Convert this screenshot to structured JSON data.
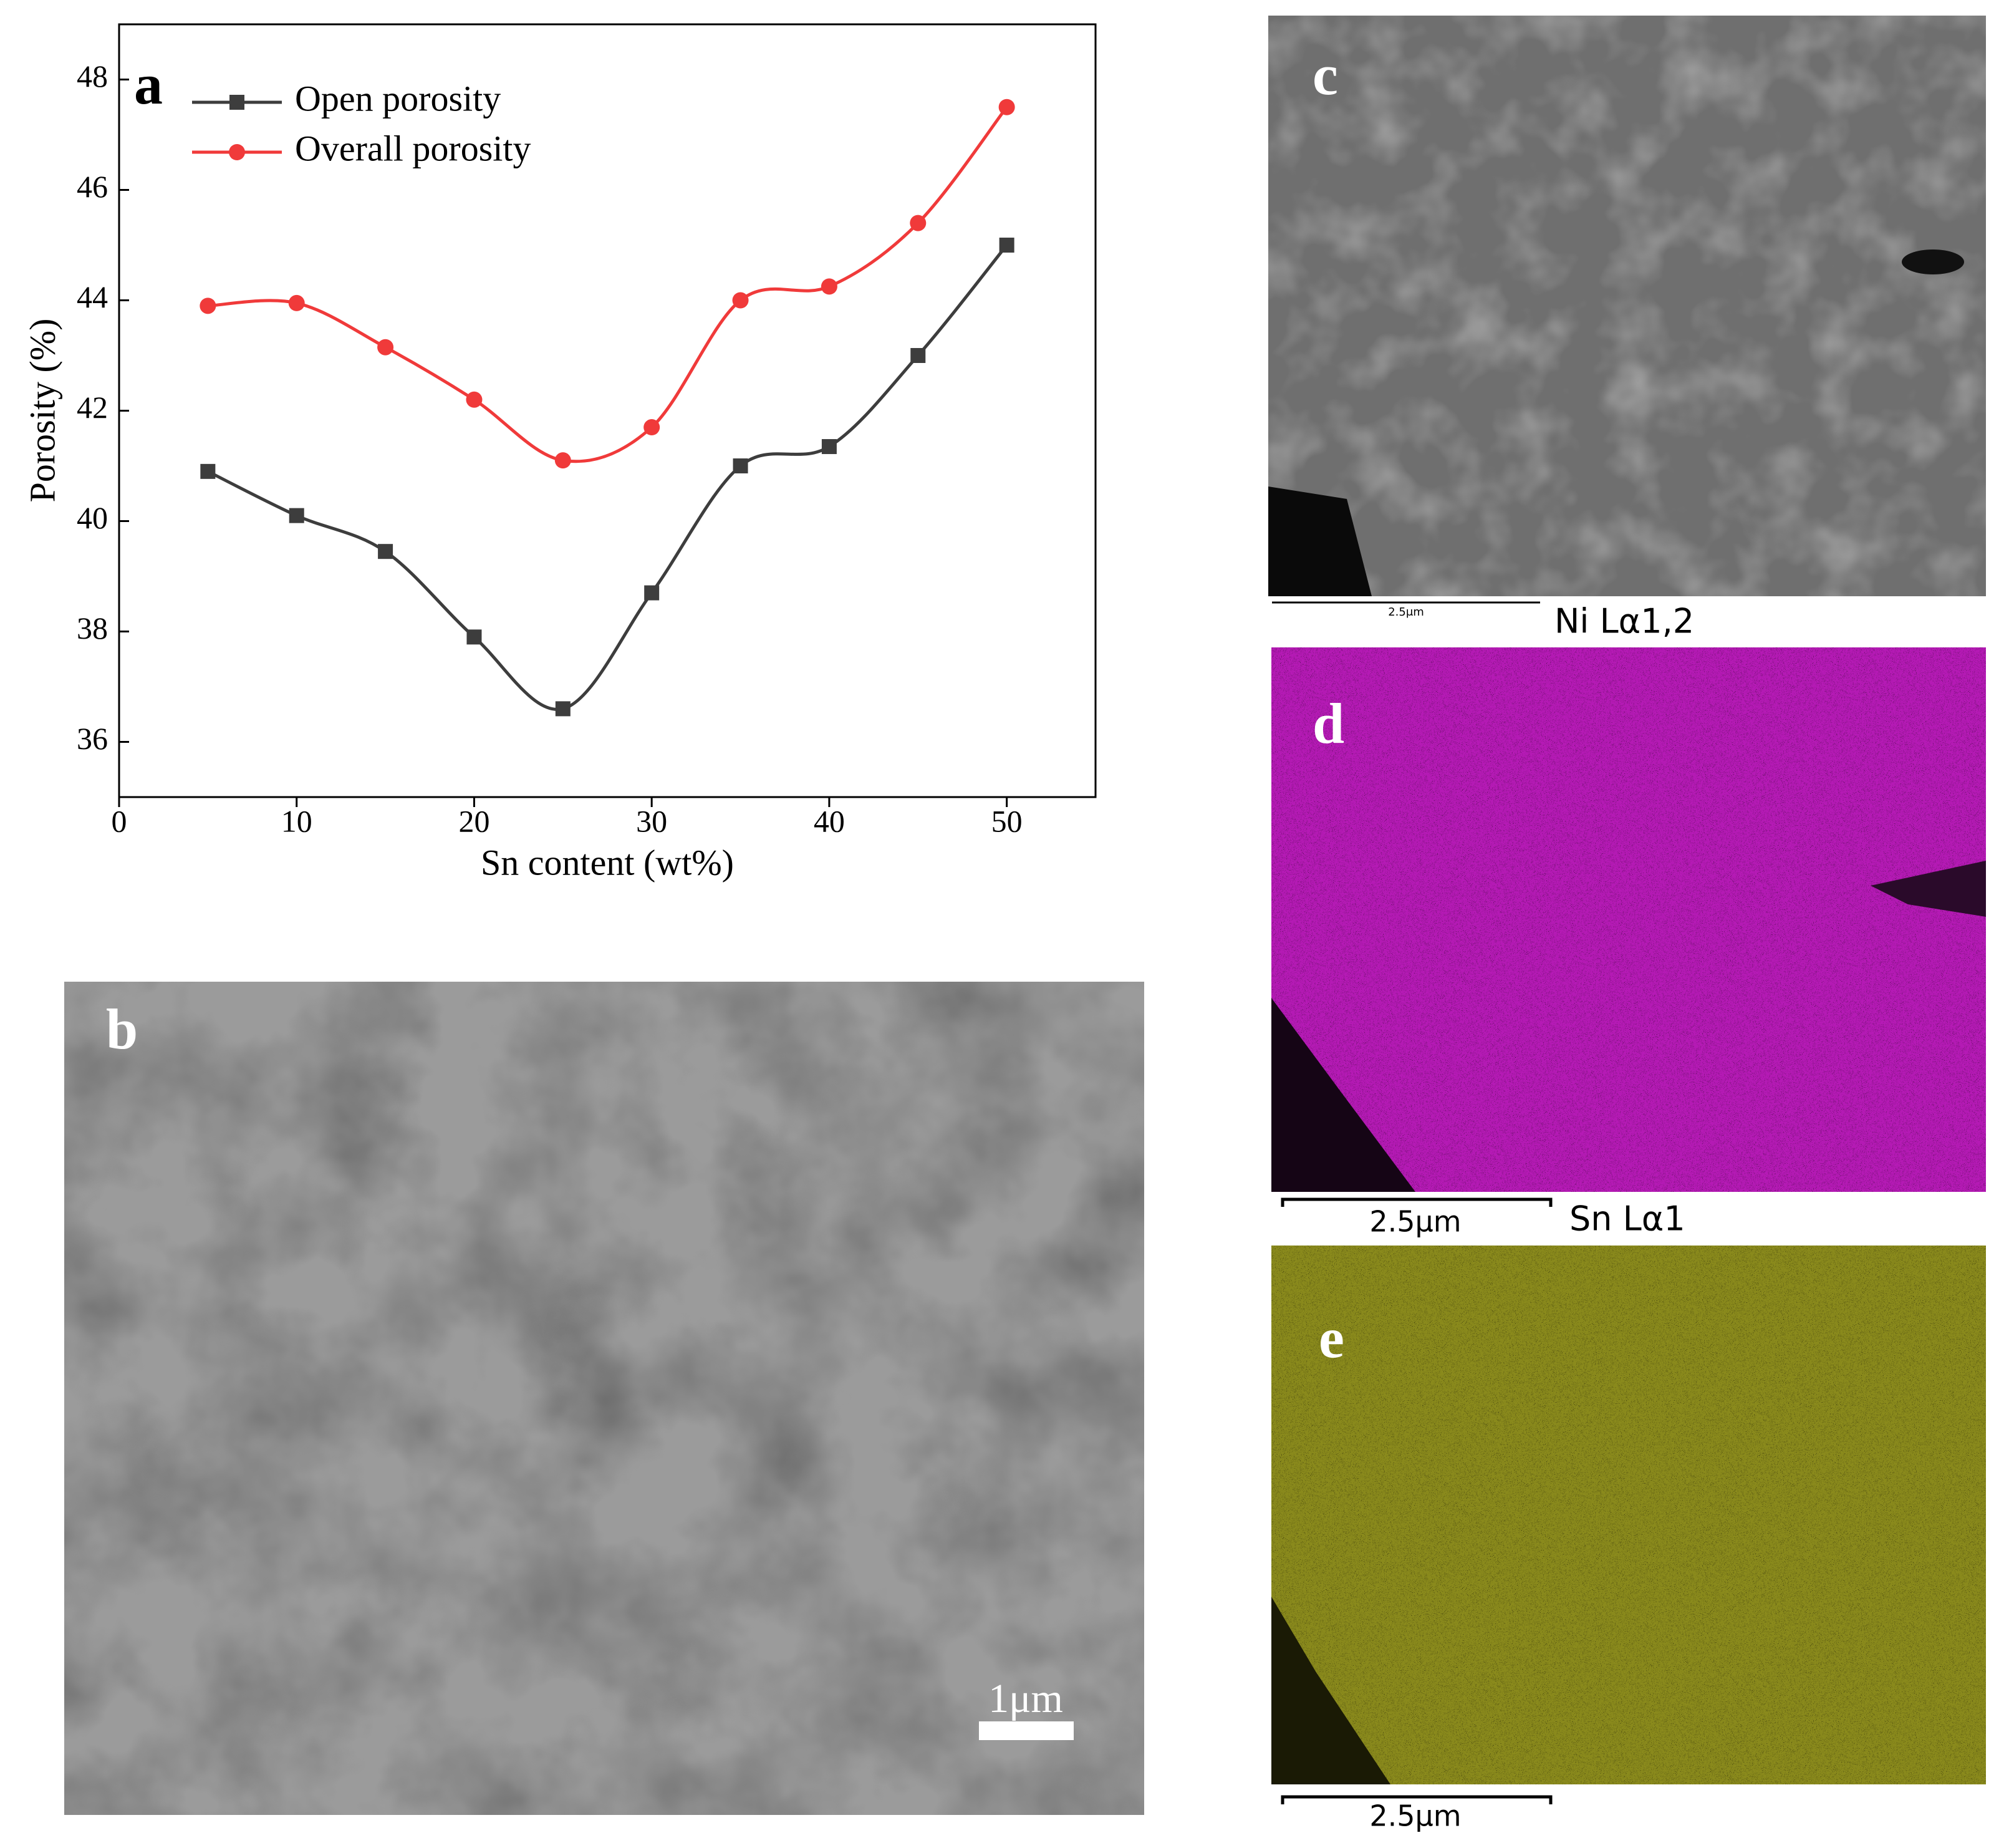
{
  "chart_data": {
    "type": "line",
    "panel_label": "a",
    "x_label": "Sn content (wt%)",
    "y_label": "Porosity (%)",
    "x": [
      5,
      10,
      15,
      20,
      25,
      30,
      35,
      40,
      45,
      50
    ],
    "series": [
      {
        "name": "Open porosity",
        "color": "#3d3d3d",
        "marker": "square",
        "values": [
          40.9,
          40.1,
          39.45,
          37.9,
          36.6,
          38.7,
          41.0,
          41.35,
          43.0,
          45.0
        ]
      },
      {
        "name": "Overall porosity",
        "color": "#f03a3a",
        "marker": "circle",
        "values": [
          43.9,
          43.95,
          43.15,
          42.2,
          41.1,
          41.7,
          44.0,
          44.25,
          45.4,
          47.5
        ]
      }
    ],
    "xlim": [
      0,
      55
    ],
    "xticks": [
      0,
      10,
      20,
      30,
      40,
      50
    ],
    "ylim": [
      35,
      49
    ],
    "yticks": [
      36,
      38,
      40,
      42,
      44,
      46,
      48
    ],
    "legend": "upper left"
  },
  "panels": {
    "b": {
      "label": "b",
      "scale_bar": "1μm"
    },
    "c": {
      "label": "c",
      "scale_bar": "2.5μm"
    },
    "d": {
      "label": "d",
      "map_title": "Ni Lα1,2",
      "scale_bar": "2.5μm"
    },
    "e": {
      "label": "e",
      "map_title": "Sn Lα1",
      "scale_bar": "2.5μm"
    }
  }
}
